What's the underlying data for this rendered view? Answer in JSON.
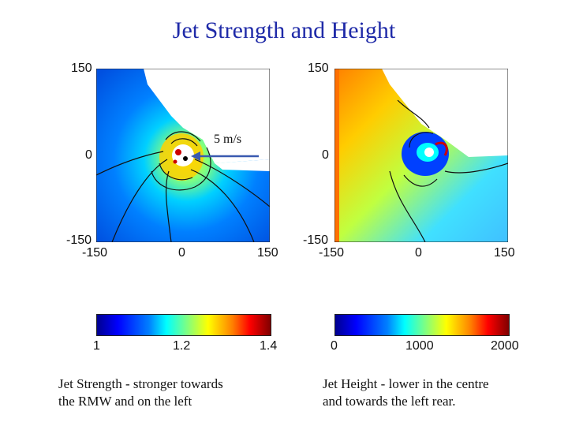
{
  "title": "Jet Strength and Height",
  "left_panel": {
    "y_ticks": [
      "150",
      "0",
      "-150"
    ],
    "x_ticks": [
      "-150",
      "0",
      "150"
    ],
    "arrow_label": "5 m/s"
  },
  "right_panel": {
    "y_ticks": [
      "150",
      "0",
      "-150"
    ],
    "x_ticks": [
      "-150",
      "0",
      "150"
    ]
  },
  "left_colorbar": {
    "ticks": [
      "1",
      "1.2",
      "1.4"
    ]
  },
  "right_colorbar": {
    "ticks": [
      "0",
      "1000",
      "2000"
    ]
  },
  "captions": {
    "left_line1": "Jet Strength - stronger towards",
    "left_line2": "the RMW and on the left",
    "right_line1": "Jet Height - lower in the centre",
    "right_line2": "and towards the left rear."
  },
  "colors": {
    "title": "#1f2aa8"
  }
}
